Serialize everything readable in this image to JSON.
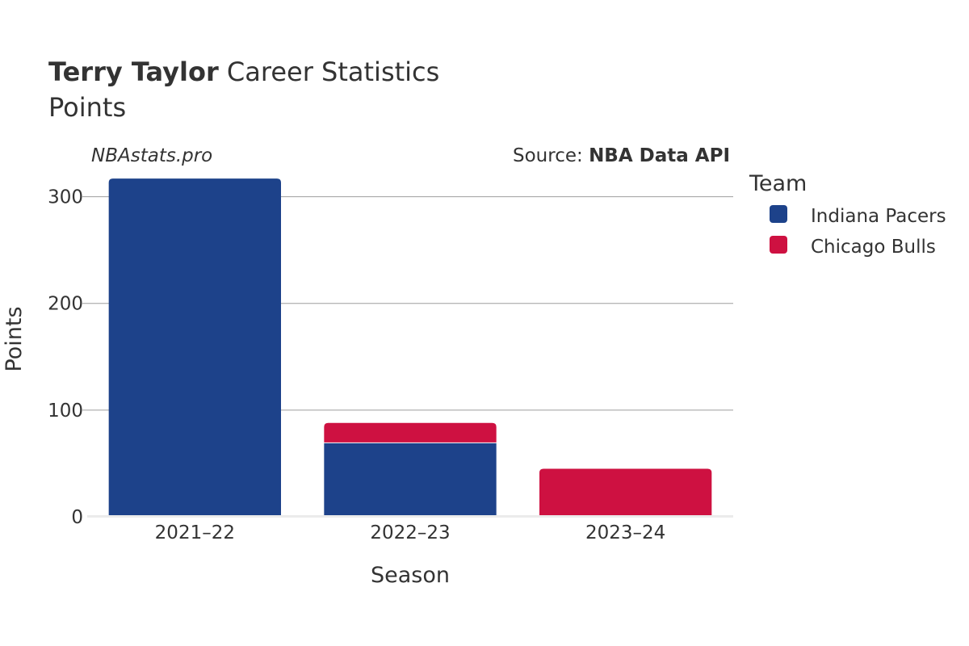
{
  "header": {
    "title_bold": "Terry Taylor",
    "title_rest": " Career Statistics",
    "subtitle": "Points"
  },
  "watermark": "NBAstats.pro",
  "source": {
    "prefix": "Source: ",
    "name": "NBA Data API"
  },
  "legend": {
    "title": "Team",
    "items": [
      {
        "label": "Indiana Pacers",
        "color": "#1d428a"
      },
      {
        "label": "Chicago Bulls",
        "color": "#ce1141"
      }
    ]
  },
  "chart_data": {
    "type": "bar",
    "stacked": true,
    "title": "Terry Taylor Career Statistics",
    "subtitle": "Points",
    "xlabel": "Season",
    "ylabel": "Points",
    "categories": [
      "2021–22",
      "2022–23",
      "2023–24"
    ],
    "series": [
      {
        "name": "Indiana Pacers",
        "color": "#1d428a",
        "values": [
          317,
          69,
          0
        ]
      },
      {
        "name": "Chicago Bulls",
        "color": "#ce1141",
        "values": [
          0,
          19,
          45
        ]
      }
    ],
    "yticks": [
      0,
      100,
      200,
      300
    ],
    "ytick_labels": [
      "0",
      "100",
      "200",
      "300"
    ],
    "ylim": [
      0,
      333
    ],
    "grid": true,
    "legend_position": "right"
  }
}
